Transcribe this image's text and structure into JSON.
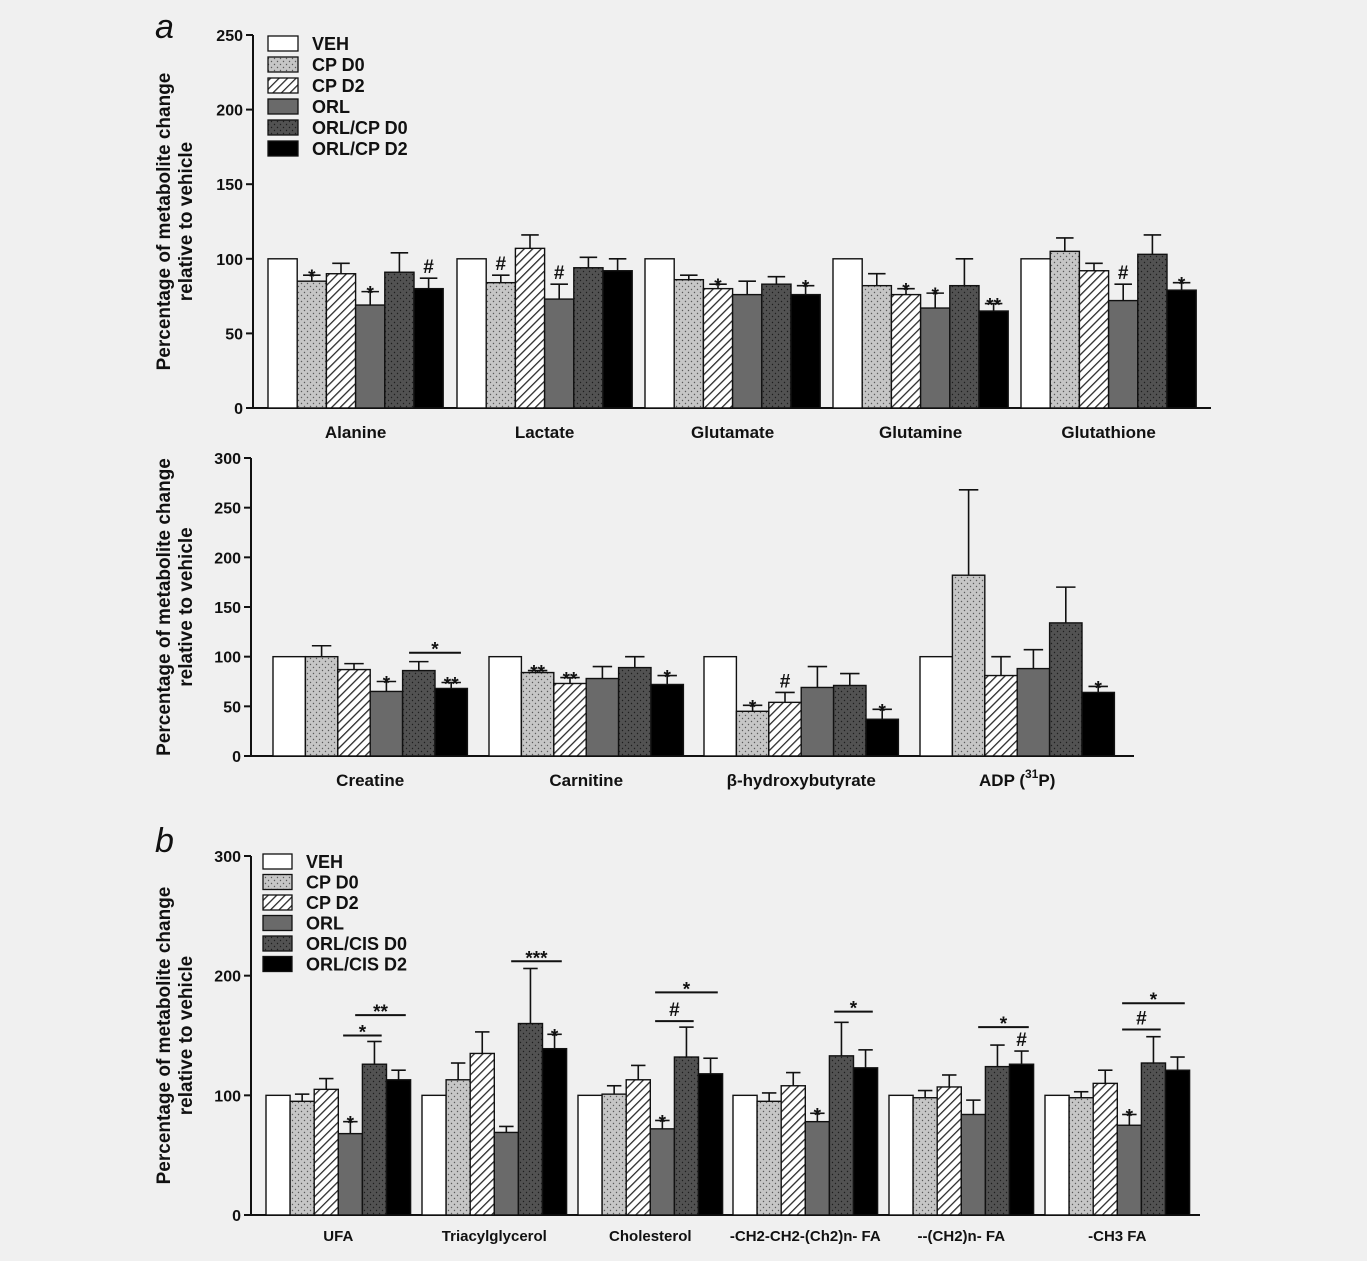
{
  "chart_data": [
    {
      "panel": "a",
      "type": "bar",
      "ylabel": [
        "Percentage of metabolite change",
        "relative to vehicle"
      ],
      "ylim": [
        0,
        250
      ],
      "yticks": [
        0,
        50,
        100,
        150,
        200,
        250
      ],
      "legend": [
        "VEH",
        "CP D0",
        "CP D2",
        "ORL",
        "ORL/CP D0",
        "ORL/CP D2"
      ],
      "legend_position": "top-left",
      "categories": [
        "Alanine",
        "Lactate",
        "Glutamate",
        "Glutamine",
        "Glutathione"
      ],
      "values": [
        [
          100,
          85,
          90,
          69,
          91,
          80
        ],
        [
          100,
          84,
          107,
          73,
          94,
          92
        ],
        [
          100,
          86,
          80,
          76,
          83,
          76
        ],
        [
          100,
          82,
          76,
          67,
          82,
          65
        ],
        [
          100,
          105,
          92,
          72,
          103,
          79
        ]
      ],
      "errors": [
        [
          0,
          4,
          7,
          9,
          13,
          7
        ],
        [
          0,
          5,
          9,
          10,
          7,
          8
        ],
        [
          0,
          3,
          3,
          9,
          5,
          6
        ],
        [
          0,
          8,
          4,
          10,
          18,
          5
        ],
        [
          0,
          9,
          5,
          11,
          13,
          5
        ]
      ],
      "annotations": [
        {
          "cat": 0,
          "bar": 1,
          "text": "*"
        },
        {
          "cat": 0,
          "bar": 3,
          "text": "*"
        },
        {
          "cat": 0,
          "bar": 5,
          "text": "#"
        },
        {
          "cat": 1,
          "bar": 1,
          "text": "#"
        },
        {
          "cat": 1,
          "bar": 3,
          "text": "#"
        },
        {
          "cat": 2,
          "bar": 2,
          "text": "*"
        },
        {
          "cat": 2,
          "bar": 5,
          "text": "*"
        },
        {
          "cat": 3,
          "bar": 2,
          "text": "*"
        },
        {
          "cat": 3,
          "bar": 3,
          "text": "*"
        },
        {
          "cat": 3,
          "bar": 5,
          "text": "**"
        },
        {
          "cat": 4,
          "bar": 3,
          "text": "#"
        },
        {
          "cat": 4,
          "bar": 5,
          "text": "*"
        }
      ],
      "brackets": []
    },
    {
      "panel": "",
      "type": "bar",
      "ylabel": [
        "Percentage of metabolite change",
        "relative to vehicle"
      ],
      "ylim": [
        0,
        300
      ],
      "yticks": [
        0,
        50,
        100,
        150,
        200,
        250,
        300
      ],
      "legend": [],
      "categories": [
        "Creatine",
        "Carnitine",
        "β-hydroxybutyrate",
        "ADP (31P)"
      ],
      "values": [
        [
          100,
          100,
          87,
          65,
          86,
          68
        ],
        [
          100,
          84,
          73,
          78,
          89,
          72
        ],
        [
          100,
          45,
          54,
          69,
          71,
          37
        ],
        [
          100,
          182,
          81,
          88,
          134,
          64
        ]
      ],
      "errors": [
        [
          0,
          11,
          6,
          10,
          9,
          6
        ],
        [
          0,
          2,
          6,
          12,
          11,
          9
        ],
        [
          0,
          6,
          10,
          21,
          12,
          10
        ],
        [
          0,
          86,
          19,
          19,
          36,
          6
        ]
      ],
      "annotations": [
        {
          "cat": 0,
          "bar": 3,
          "text": "*"
        },
        {
          "cat": 0,
          "bar": 5,
          "text": "**"
        },
        {
          "cat": 1,
          "bar": 1,
          "text": "**"
        },
        {
          "cat": 1,
          "bar": 2,
          "text": "**"
        },
        {
          "cat": 1,
          "bar": 5,
          "text": "*"
        },
        {
          "cat": 2,
          "bar": 1,
          "text": "*"
        },
        {
          "cat": 2,
          "bar": 2,
          "text": "#"
        },
        {
          "cat": 2,
          "bar": 5,
          "text": "*"
        },
        {
          "cat": 3,
          "bar": 5,
          "text": "*"
        }
      ],
      "brackets": [
        {
          "cat": 0,
          "from": 4,
          "to": 5,
          "y": 104,
          "text": "*"
        }
      ]
    },
    {
      "panel": "b",
      "type": "bar",
      "ylabel": [
        "Percentage of metabolite change",
        "relative to vehicle"
      ],
      "ylim": [
        0,
        300
      ],
      "yticks": [
        0,
        100,
        200,
        300
      ],
      "legend": [
        "VEH",
        "CP D0",
        "CP D2",
        "ORL",
        "ORL/CIS D0",
        "ORL/CIS D2"
      ],
      "legend_position": "top-left",
      "categories": [
        "UFA",
        "Triacylglycerol",
        "Cholesterol",
        "-CH2-CH2-(Ch2)n- FA",
        "--(CH2)n- FA",
        "-CH3 FA"
      ],
      "values": [
        [
          100,
          95,
          105,
          68,
          126,
          113
        ],
        [
          100,
          113,
          135,
          69,
          160,
          139
        ],
        [
          100,
          101,
          113,
          72,
          132,
          118
        ],
        [
          100,
          95,
          108,
          78,
          133,
          123
        ],
        [
          100,
          98,
          107,
          84,
          124,
          126
        ],
        [
          100,
          98,
          110,
          75,
          127,
          121
        ]
      ],
      "errors": [
        [
          0,
          6,
          9,
          10,
          19,
          8
        ],
        [
          0,
          14,
          18,
          5,
          46,
          12
        ],
        [
          0,
          7,
          12,
          7,
          25,
          13
        ],
        [
          0,
          7,
          11,
          7,
          28,
          15
        ],
        [
          0,
          6,
          10,
          12,
          18,
          11
        ],
        [
          0,
          5,
          11,
          9,
          22,
          11
        ]
      ],
      "annotations": [
        {
          "cat": 0,
          "bar": 3,
          "text": "*"
        },
        {
          "cat": 1,
          "bar": 5,
          "text": "*"
        },
        {
          "cat": 2,
          "bar": 3,
          "text": "*"
        },
        {
          "cat": 3,
          "bar": 3,
          "text": "*"
        },
        {
          "cat": 4,
          "bar": 5,
          "text": "#"
        },
        {
          "cat": 5,
          "bar": 3,
          "text": "*"
        }
      ],
      "brackets": [
        {
          "cat": 0,
          "from": 3,
          "to": 4,
          "y": 150,
          "text": "*"
        },
        {
          "cat": 0,
          "from": 3.5,
          "to": 5,
          "y": 167,
          "text": "**"
        },
        {
          "cat": 1,
          "from": 3.5,
          "to": 5,
          "y": 212,
          "text": "***"
        },
        {
          "cat": 2,
          "from": 3,
          "to": 4,
          "y": 162,
          "text": "#"
        },
        {
          "cat": 2,
          "from": 3,
          "to": 5,
          "y": 186,
          "text": "*"
        },
        {
          "cat": 3,
          "from": 4,
          "to": 5,
          "y": 170,
          "text": "*"
        },
        {
          "cat": 4,
          "from": 3.5,
          "to": 5,
          "y": 157,
          "text": "*"
        },
        {
          "cat": 5,
          "from": 3,
          "to": 4,
          "y": 155,
          "text": "#"
        },
        {
          "cat": 5,
          "from": 3,
          "to": 5,
          "y": 177,
          "text": "*"
        }
      ]
    }
  ],
  "styles": {
    "veh": "#ffffff",
    "cp_d0": "#c4c4c4",
    "cp_d2": "hatch",
    "orl": "#686868",
    "orl_d0": "#4f4f4f",
    "orl_d2": "#000000",
    "background": "#f0f0f0"
  }
}
